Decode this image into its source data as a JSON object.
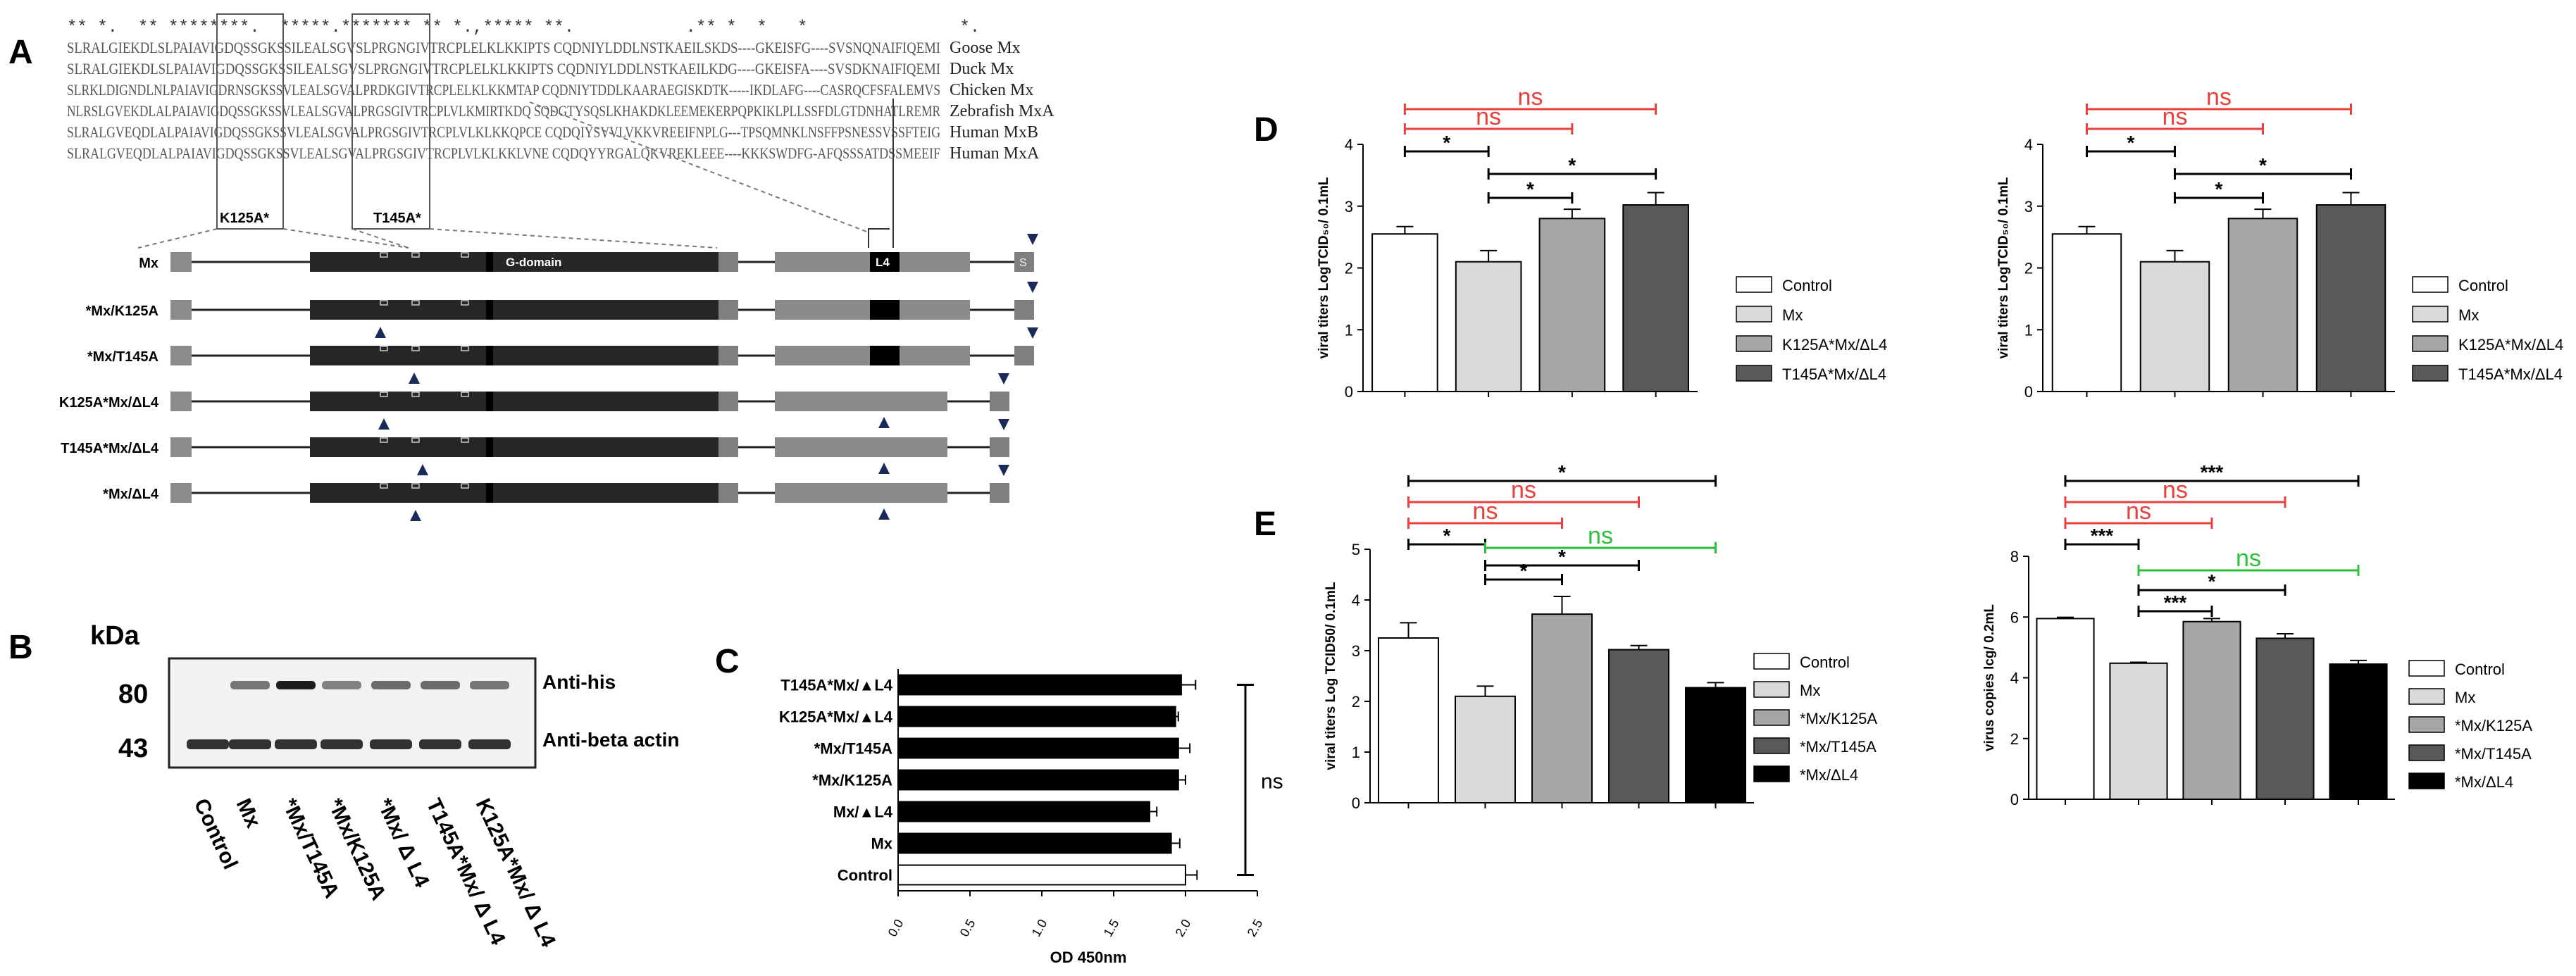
{
  "panel_labels": {
    "A": "A",
    "B": "B",
    "C": "C",
    "D": "D",
    "E": "E"
  },
  "alignment": {
    "conservation": "** *.  ** ********.  *****.******* ** *.,***** **.           .** *  *   *               *.",
    "rows": [
      {
        "seq": "SLRALGIEKDLSLPAIAVIGDQSSGKSSILEALSGVSLPRGNGIVTRCPLELKLKKIPTS   CQDNIYLDDLNSTKAEILSKDS----GKEISFG----SVSNQNAIFIQEMI",
        "species": "Goose Mx"
      },
      {
        "seq": "SLRALGIEKDLSLPAIAVIGDQSSGKSSILEALSGVSLPRGNGIVTRCPLELKLKKIPTS   CQDNIYLDDLNSTKAEILKDG----GKEISFA----SVSDKNAIFIQEMI",
        "species": "Duck Mx"
      },
      {
        "seq": "SLRKLDIGNDLNLPAIAVIGDRNSGKSSVLEALSGVALPRDKGIVTRCPLELKLKKMTAP   CQDNIYTDDLKAARAEGISKDTK-----IKDLAFG----CASRQCFSFALEMVS",
        "species": "Chicken Mx"
      },
      {
        "seq": "NLRSLGVEKDLALPAIAVIGDQSSGKSSVLEALSGVALPRGSGIVTRCPLVLKMIRTKDQ   SQDGTYSQSLKHAKDKLEEMEKERPQPKIKLPLLSSFDLGTDNHATLREMR",
        "species": "Zebrafish MxA"
      },
      {
        "seq": "SLRALGVEQDLALPAIAVIGDQSSGKSSVLEALSGVALPRGSGIVTRCPLVLKLKKQPCE   CQDQIYSVVLVKKVREEIFNPLG---TPSQMNKLNSFFPSNESSVSSFTEIG",
        "species": "Human MxB"
      },
      {
        "seq": "SLRALGVEQDLALPAIAVIGDQSSGKSSVLEALSGVALPRGSGIVTRCPLVLKLKKLVNE   CQDQYYRGALQKVREKLEEE----KKKSWDFG-AFQSSSATDSSMEEIF",
        "species": "Human MxA"
      }
    ],
    "site_labels": [
      "K125A*",
      "T145A*"
    ]
  },
  "constructs": [
    {
      "label": "Mx",
      "gdomain": "G-domain",
      "l4": "L4",
      "s": "S"
    },
    {
      "label": "*Mx/K125A"
    },
    {
      "label": "*Mx/T145A"
    },
    {
      "label": "K125A*Mx/ΔL4"
    },
    {
      "label": "T145A*Mx/ΔL4"
    },
    {
      "label": "*Mx/ΔL4"
    }
  ],
  "blot": {
    "unit": "kDa",
    "markers": [
      "80",
      "43"
    ],
    "bands": [
      "Anti-his",
      "Anti-beta actin"
    ],
    "lanes": [
      "Control",
      "Mx",
      "*Mx/T145A",
      "*Mx/K125A",
      "*Mx/ Δ L4",
      "T145A*Mx/ Δ L4",
      "K125A*Mx/ Δ L4"
    ]
  },
  "colors": {
    "ns_red": "#e8403c",
    "ns_green": "#2bbf3a",
    "sig_black": "#000000",
    "bar_white": "#ffffff",
    "bar_light": "#d9d9d9",
    "bar_mid": "#a6a6a6",
    "bar_dark": "#595959",
    "bar_black": "#000000",
    "domain_dark": "#262626",
    "domain_grey": "#8c8c8c",
    "tail_grey": "#7f7f7f"
  },
  "chart_data": [
    {
      "panel": "C",
      "type": "bar",
      "orientation": "horizontal",
      "categories": [
        "Control",
        "Mx",
        "Mx/▲L4",
        "*Mx/K125A",
        "*Mx/T145A",
        "K125A*Mx/▲L4",
        "T145A*Mx/▲L4"
      ],
      "values": [
        2.0,
        1.9,
        1.75,
        1.95,
        1.95,
        1.93,
        1.97
      ],
      "errors": [
        0.08,
        0.06,
        0.05,
        0.05,
        0.08,
        0.02,
        0.1
      ],
      "fills": [
        "#ffffff",
        "#000000",
        "#000000",
        "#000000",
        "#000000",
        "#000000",
        "#000000"
      ],
      "xlabel": "OD 450nm",
      "xlim": [
        0,
        2.5
      ],
      "xticks": [
        "0.0",
        "0.5",
        "1.0",
        "1.5",
        "2.0",
        "2.5"
      ],
      "annotation": "ns"
    },
    {
      "panel": "D",
      "side": "left",
      "type": "bar",
      "categories": [
        "Control",
        "Mx",
        "K125A*Mx/ΔL4",
        "T145A*Mx/ΔL4"
      ],
      "values": [
        2.55,
        2.1,
        2.8,
        3.02
      ],
      "errors": [
        0.12,
        0.18,
        0.15,
        0.2
      ],
      "fills": [
        "#ffffff",
        "#d9d9d9",
        "#a6a6a6",
        "#595959"
      ],
      "ylabel": "viral titers LogTCID₅₀/ 0.1mL",
      "ylim": [
        0,
        4
      ],
      "yticks": [
        "0",
        "1",
        "2",
        "3",
        "4"
      ],
      "legend": [
        "Control",
        "Mx",
        "K125A*Mx/ΔL4",
        "T145A*Mx/ΔL4"
      ],
      "brackets": [
        {
          "from": 0,
          "to": 3,
          "label": "ns",
          "color": "red"
        },
        {
          "from": 0,
          "to": 2,
          "label": "ns",
          "color": "red"
        },
        {
          "from": 0,
          "to": 1,
          "label": "*",
          "color": "black"
        },
        {
          "from": 1,
          "to": 3,
          "label": "*",
          "color": "black"
        },
        {
          "from": 1,
          "to": 2,
          "label": "*",
          "color": "black"
        }
      ]
    },
    {
      "panel": "D",
      "side": "right",
      "type": "bar",
      "categories": [
        "Control",
        "Mx",
        "K125A*Mx/ΔL4",
        "T145A*Mx/ΔL4"
      ],
      "values": [
        2.55,
        2.1,
        2.8,
        3.02
      ],
      "errors": [
        0.12,
        0.18,
        0.15,
        0.2
      ],
      "fills": [
        "#ffffff",
        "#d9d9d9",
        "#a6a6a6",
        "#595959"
      ],
      "ylabel": "viral titers LogTCID₅₀/ 0.1mL",
      "ylim": [
        0,
        4
      ],
      "yticks": [
        "0",
        "1",
        "2",
        "3",
        "4"
      ],
      "legend": [
        "Control",
        "Mx",
        "K125A*Mx/ΔL4",
        "T145A*Mx/ΔL4"
      ],
      "brackets": [
        {
          "from": 0,
          "to": 3,
          "label": "ns",
          "color": "red"
        },
        {
          "from": 0,
          "to": 2,
          "label": "ns",
          "color": "red"
        },
        {
          "from": 0,
          "to": 1,
          "label": "*",
          "color": "black"
        },
        {
          "from": 1,
          "to": 3,
          "label": "*",
          "color": "black"
        },
        {
          "from": 1,
          "to": 2,
          "label": "*",
          "color": "black"
        }
      ]
    },
    {
      "panel": "E",
      "side": "left",
      "type": "bar",
      "categories": [
        "Control",
        "Mx",
        "*Mx/K125A",
        "*Mx/T145A",
        "*Mx/ΔL4"
      ],
      "values": [
        3.25,
        2.1,
        3.72,
        3.02,
        2.27
      ],
      "errors": [
        0.3,
        0.2,
        0.35,
        0.08,
        0.1
      ],
      "fills": [
        "#ffffff",
        "#d9d9d9",
        "#a6a6a6",
        "#595959",
        "#000000"
      ],
      "ylabel": "viral titers Log TCID50/ 0.1mL",
      "ylim": [
        0,
        5
      ],
      "yticks": [
        "0",
        "1",
        "2",
        "3",
        "4",
        "5"
      ],
      "legend": [
        "Control",
        "Mx",
        "*Mx/K125A",
        "*Mx/T145A",
        "*Mx/ΔL4"
      ],
      "brackets": [
        {
          "from": 0,
          "to": 4,
          "label": "*",
          "color": "black"
        },
        {
          "from": 0,
          "to": 3,
          "label": "ns",
          "color": "red"
        },
        {
          "from": 0,
          "to": 2,
          "label": "ns",
          "color": "red"
        },
        {
          "from": 0,
          "to": 1,
          "label": "*",
          "color": "black"
        },
        {
          "from": 1,
          "to": 4,
          "label": "ns",
          "color": "green"
        },
        {
          "from": 1,
          "to": 3,
          "label": "*",
          "color": "black"
        },
        {
          "from": 1,
          "to": 2,
          "label": "*",
          "color": "black"
        }
      ]
    },
    {
      "panel": "E",
      "side": "right",
      "type": "bar",
      "categories": [
        "Control",
        "Mx",
        "*Mx/K125A",
        "*Mx/T145A",
        "*Mx/ΔL4"
      ],
      "values": [
        5.95,
        4.48,
        5.85,
        5.3,
        4.45
      ],
      "errors": [
        0.04,
        0.03,
        0.1,
        0.15,
        0.12
      ],
      "fills": [
        "#ffffff",
        "#d9d9d9",
        "#a6a6a6",
        "#595959",
        "#000000"
      ],
      "ylabel": "virus copies lcg/ 0.2mL",
      "ylim": [
        0,
        8
      ],
      "yticks": [
        "0",
        "2",
        "4",
        "6",
        "8"
      ],
      "legend": [
        "Control",
        "Mx",
        "*Mx/K125A",
        "*Mx/T145A",
        "*Mx/ΔL4"
      ],
      "brackets": [
        {
          "from": 0,
          "to": 4,
          "label": "***",
          "color": "black"
        },
        {
          "from": 0,
          "to": 3,
          "label": "ns",
          "color": "red"
        },
        {
          "from": 0,
          "to": 2,
          "label": "ns",
          "color": "red"
        },
        {
          "from": 0,
          "to": 1,
          "label": "***",
          "color": "black"
        },
        {
          "from": 1,
          "to": 4,
          "label": "ns",
          "color": "green"
        },
        {
          "from": 1,
          "to": 3,
          "label": "*",
          "color": "black"
        },
        {
          "from": 1,
          "to": 2,
          "label": "***",
          "color": "black"
        }
      ]
    }
  ]
}
